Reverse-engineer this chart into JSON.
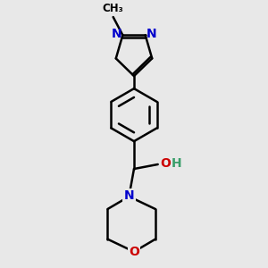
{
  "background_color": "#e8e8e8",
  "bond_color": "#000000",
  "bond_width": 1.8,
  "N_color": "#0000cc",
  "O_color": "#cc0000",
  "H_color": "#3a9e6a",
  "font_size": 10,
  "fig_size": [
    3.0,
    3.0
  ],
  "dpi": 100,
  "xlim": [
    -2.2,
    2.2
  ],
  "ylim": [
    -6.0,
    4.0
  ]
}
